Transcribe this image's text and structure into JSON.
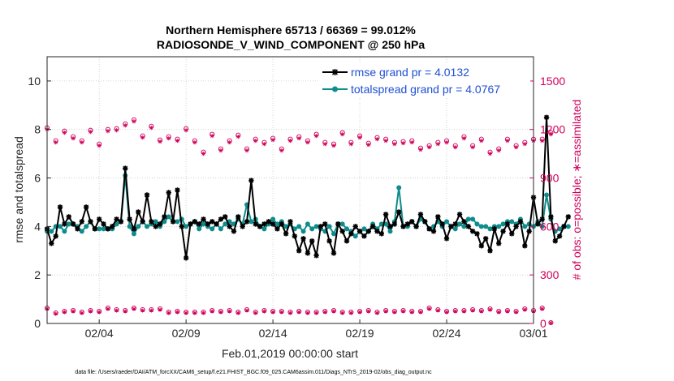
{
  "chart_data": {
    "type": "line",
    "title_line1": "Northern Hemisphere 65713 / 66369 = 99.012%",
    "title_line2": "RADIOSONDE_V_WIND_COMPONENT @ 250 hPa",
    "xlabel": "Feb.01,2019 00:00:00 start",
    "ylabel_left": "rmse and totalspread",
    "ylabel_right": "# of obs: o=possible; ∗=assimilated",
    "footnote": "data file: /Users/raeder/DAI/ATM_forcXX/CAM6_setup/f.e21.FHIST_BGC.f09_025.CAM6assim.011/Diags_NTrS_2019-02/obs_diag_output.nc",
    "x_ticks": [
      {
        "label": "02/04",
        "day": 4
      },
      {
        "label": "02/09",
        "day": 9
      },
      {
        "label": "02/14",
        "day": 14
      },
      {
        "label": "02/19",
        "day": 19
      },
      {
        "label": "02/24",
        "day": 24
      },
      {
        "label": "03/01",
        "day": 29
      }
    ],
    "xlim": [
      1.0,
      29.0
    ],
    "ylim_left": [
      0,
      11
    ],
    "yticks_left": [
      "0",
      "2",
      "4",
      "6",
      "8",
      "10"
    ],
    "yticks_left_values": [
      0,
      2,
      4,
      6,
      8,
      10
    ],
    "ylim_right": [
      0,
      1650
    ],
    "yticks_right": [
      "0",
      "300",
      "600",
      "900",
      "1200",
      "1500"
    ],
    "yticks_right_values": [
      0,
      300,
      600,
      900,
      1200,
      1500
    ],
    "grid": true,
    "legend_position": "top-right",
    "x_start_day": 1.0,
    "x_step_days": 0.25,
    "series": [
      {
        "name": "rmse grand pr = 4.0132",
        "color": "#000000",
        "marker": "asterisk",
        "values": [
          3.9,
          3.3,
          3.6,
          4.8,
          4.1,
          4.4,
          4.1,
          3.9,
          4.2,
          4.8,
          4.2,
          3.9,
          4.3,
          4.1,
          3.9,
          4.0,
          4.3,
          4.2,
          6.4,
          4.3,
          3.9,
          4.6,
          4.2,
          5.3,
          4.2,
          4.0,
          4.1,
          4.4,
          5.4,
          4.2,
          5.5,
          4.0,
          2.7,
          4.1,
          4.2,
          4.1,
          4.3,
          4.1,
          4.2,
          4.1,
          4.3,
          4.4,
          4.0,
          3.8,
          4.4,
          4.0,
          4.2,
          5.9,
          4.1,
          4.0,
          4.1,
          4.2,
          4.1,
          3.9,
          4.1,
          3.7,
          4.2,
          3.6,
          3.0,
          3.5,
          2.9,
          3.4,
          2.8,
          4.0,
          4.1,
          3.4,
          2.9,
          4.1,
          3.8,
          3.4,
          3.7,
          4.0,
          3.8,
          3.6,
          3.8,
          4.0,
          3.8,
          3.7,
          4.5,
          4.0,
          4.1,
          4.6,
          4.0,
          4.1,
          4.2,
          4.0,
          4.5,
          4.2,
          3.9,
          3.8,
          4.4,
          4.1,
          3.5,
          4.0,
          4.1,
          4.5,
          4.2,
          4.0,
          3.8,
          3.7,
          3.2,
          3.5,
          3.0,
          3.9,
          3.3,
          3.8,
          4.1,
          3.7,
          4.0,
          4.2,
          3.2,
          3.8,
          5.2,
          4.1,
          4.3,
          8.5,
          4.4,
          3.4,
          3.6,
          4.0,
          4.4
        ]
      },
      {
        "name": "totalspread grand pr = 4.0767",
        "color": "#0f8c8c",
        "marker": "circle",
        "values": [
          3.8,
          3.8,
          4.0,
          4.0,
          3.8,
          4.1,
          4.1,
          4.0,
          3.8,
          4.0,
          4.2,
          3.9,
          3.9,
          3.9,
          3.9,
          3.9,
          4.1,
          4.2,
          6.1,
          4.0,
          3.7,
          4.0,
          4.2,
          4.0,
          4.1,
          4.2,
          4.0,
          4.2,
          4.4,
          4.2,
          4.2,
          4.3,
          4.0,
          4.1,
          4.2,
          3.9,
          4.1,
          4.0,
          3.9,
          4.1,
          3.9,
          4.1,
          4.2,
          4.1,
          4.3,
          4.1,
          4.9,
          4.2,
          4.3,
          4.0,
          3.9,
          4.1,
          4.3,
          4.1,
          4.2,
          4.0,
          4.1,
          3.9,
          4.0,
          3.8,
          4.1,
          3.9,
          4.0,
          3.9,
          3.8,
          4.0,
          3.7,
          4.1,
          4.1,
          3.9,
          3.8,
          3.6,
          3.8,
          3.9,
          3.8,
          4.1,
          3.9,
          4.1,
          4.1,
          3.8,
          4.2,
          5.6,
          4.0,
          4.0,
          4.2,
          4.0,
          4.3,
          4.2,
          3.9,
          4.0,
          4.2,
          4.0,
          4.2,
          4.0,
          3.9,
          4.1,
          4.0,
          4.3,
          4.3,
          4.1,
          4.0,
          4.0,
          3.9,
          4.0,
          4.0,
          4.1,
          4.2,
          4.2,
          4.1,
          4.3,
          4.0,
          4.1,
          4.0,
          4.2,
          4.0,
          5.3,
          4.3,
          3.8,
          3.9,
          4.0,
          4.0
        ]
      }
    ],
    "obs_series": [
      {
        "name": "possible",
        "color": "#d0005a",
        "marker": "open-circle",
        "x_start_day": 1.0,
        "x_step_days": 0.5,
        "high": [
          1210,
          1130,
          1190,
          1155,
          1130,
          1195,
          1110,
          1200,
          1205,
          1235,
          1260,
          1160,
          1220,
          1135,
          1155,
          1140,
          1205,
          1130,
          1060,
          1170,
          1080,
          1130,
          1165,
          1080,
          1140,
          1120,
          1145,
          1080,
          1140,
          1155,
          1130,
          1170,
          1120,
          1110,
          1180,
          1120,
          1160,
          1115,
          1150,
          1140,
          1120,
          1125,
          1130,
          1085,
          1100,
          1120,
          1130,
          1100,
          1155,
          1100,
          1140,
          1060,
          1080,
          1140,
          1100,
          1120,
          1140,
          1140,
          1180
        ],
        "low": [
          95,
          65,
          75,
          80,
          70,
          80,
          75,
          95,
          85,
          80,
          95,
          85,
          85,
          90,
          70,
          75,
          70,
          70,
          70,
          80,
          75,
          80,
          70,
          85,
          70,
          80,
          75,
          75,
          70,
          75,
          70,
          70,
          75,
          80,
          70,
          70,
          75,
          80,
          70,
          80,
          75,
          80,
          75,
          75,
          95,
          85,
          75,
          80,
          80,
          85,
          80,
          90,
          75,
          80,
          75,
          90,
          80,
          95,
          5
        ]
      },
      {
        "name": "assimilated",
        "color": "#d0005a",
        "marker": "asterisk",
        "x_start_day": 1.0,
        "x_step_days": 0.5,
        "high": [
          1200,
          1120,
          1180,
          1145,
          1120,
          1185,
          1100,
          1190,
          1195,
          1225,
          1250,
          1150,
          1210,
          1125,
          1145,
          1130,
          1195,
          1120,
          1050,
          1160,
          1070,
          1120,
          1155,
          1070,
          1130,
          1110,
          1135,
          1070,
          1130,
          1145,
          1120,
          1160,
          1110,
          1100,
          1170,
          1110,
          1150,
          1105,
          1140,
          1130,
          1110,
          1115,
          1120,
          1075,
          1090,
          1110,
          1120,
          1090,
          1145,
          1090,
          1130,
          1050,
          1070,
          1130,
          1090,
          1110,
          1130,
          1130,
          1170
        ],
        "low": [
          90,
          60,
          70,
          75,
          65,
          75,
          70,
          90,
          80,
          75,
          90,
          80,
          80,
          85,
          65,
          70,
          65,
          65,
          65,
          75,
          70,
          75,
          65,
          80,
          65,
          75,
          70,
          70,
          65,
          70,
          65,
          65,
          70,
          75,
          65,
          65,
          70,
          75,
          65,
          75,
          70,
          75,
          70,
          70,
          90,
          80,
          70,
          75,
          75,
          80,
          75,
          85,
          70,
          75,
          70,
          85,
          75,
          90,
          3
        ]
      }
    ]
  }
}
